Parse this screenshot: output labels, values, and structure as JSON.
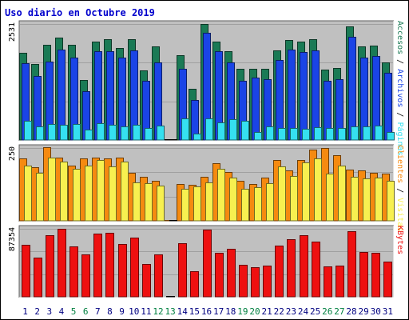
{
  "colors": {
    "accesos": "#1a7a55",
    "archivos": "#1a44e6",
    "paginas": "#35e0f0",
    "clientes": "#f58a10",
    "visitas": "#f7f050",
    "kbytes": "#ee1010",
    "title": "#0000cc",
    "panel_bg": "#c0c0c0",
    "weekend_tick": "#008040",
    "tick": "#000080",
    "grid": "#a0a0a0"
  },
  "chart_data": {
    "type": "bar",
    "title": "Uso diario en Octubre 2019",
    "categories": [
      "1",
      "2",
      "3",
      "4",
      "5",
      "6",
      "7",
      "8",
      "9",
      "10",
      "11",
      "12",
      "13",
      "14",
      "15",
      "16",
      "17",
      "18",
      "19",
      "20",
      "21",
      "22",
      "23",
      "24",
      "25",
      "26",
      "27",
      "28",
      "29",
      "30",
      "31"
    ],
    "weekend_days": [
      "5",
      "6",
      "12",
      "13",
      "19",
      "20",
      "26",
      "27"
    ],
    "panels": [
      {
        "key": "hits",
        "ymax_label": "2531",
        "ymax": 2531,
        "legend": [
          {
            "label": "Accesos",
            "color": "accesos"
          },
          {
            "sep": " / "
          },
          {
            "label": "Archivos",
            "color": "archivos"
          },
          {
            "sep": " / "
          },
          {
            "label": "Páginas",
            "color": "paginas"
          }
        ],
        "series": [
          {
            "name": "Accesos",
            "color": "accesos",
            "values": [
              1910,
              1660,
              2070,
              2230,
              2070,
              1310,
              2140,
              2200,
              2000,
              2200,
              1520,
              2050,
              0,
              1850,
              1120,
              2530,
              2140,
              1930,
              1550,
              1550,
              1550,
              1950,
              2180,
              2140,
              2200,
              1540,
              1570,
              2480,
              2050,
              2060,
              1700
            ]
          },
          {
            "name": "Archivos",
            "color": "archivos",
            "values": [
              1680,
              1400,
              1710,
              1980,
              1790,
              1060,
              1930,
              1940,
              1800,
              1960,
              1300,
              1700,
              0,
              1560,
              870,
              2340,
              1940,
              1700,
              1300,
              1370,
              1330,
              1740,
              1980,
              1920,
              1960,
              1300,
              1330,
              2260,
              1800,
              1840,
              1460
            ]
          },
          {
            "name": "Páginas",
            "color": "paginas",
            "values": [
              420,
              290,
              350,
              340,
              350,
              220,
              360,
              340,
              290,
              330,
              260,
              310,
              0,
              470,
              140,
              470,
              380,
              460,
              420,
              170,
              300,
              260,
              260,
              240,
              280,
              260,
              260,
              290,
              300,
              320,
              180
            ]
          }
        ]
      },
      {
        "key": "visits",
        "ymax_label": "250",
        "ymax": 250,
        "legend": [
          {
            "label": "Clientes",
            "color": "clientes"
          },
          {
            "sep": " / "
          },
          {
            "label": "Visitas",
            "color": "visitas"
          }
        ],
        "series": [
          {
            "name": "Clientes",
            "color": "clientes",
            "values": [
              215,
              183,
              252,
              216,
              190,
              215,
              216,
              214,
              216,
              165,
              151,
              138,
              3,
              125,
              123,
              151,
              197,
              168,
              136,
              126,
              148,
              208,
              173,
              208,
              245,
              250,
              226,
              175,
              172,
              166,
              162
            ]
          },
          {
            "name": "Visitas",
            "color": "visitas",
            "values": [
              190,
              165,
              218,
              203,
              178,
              190,
              209,
              187,
              202,
              131,
              128,
              121,
              0,
              110,
              117,
              131,
              178,
              149,
              111,
              115,
              128,
              188,
              153,
              200,
              214,
              163,
              190,
              151,
              146,
              149,
              137
            ]
          }
        ]
      },
      {
        "key": "kbytes",
        "ymax_label": "87354",
        "ymax": 87354,
        "legend": [
          {
            "label": "KBytes",
            "color": "kbytes"
          }
        ],
        "series": [
          {
            "name": "KBytes",
            "color": "kbytes",
            "values": [
              66700,
              50200,
              79200,
              87200,
              64400,
              54400,
              81400,
              82000,
              67700,
              76500,
              41900,
              54600,
              0,
              68600,
              33000,
              86600,
              56900,
              62000,
              40600,
              38500,
              39900,
              66000,
              73700,
              78700,
              70800,
              39200,
              40100,
              84700,
              57300,
              56600,
              44800
            ]
          }
        ]
      }
    ]
  }
}
